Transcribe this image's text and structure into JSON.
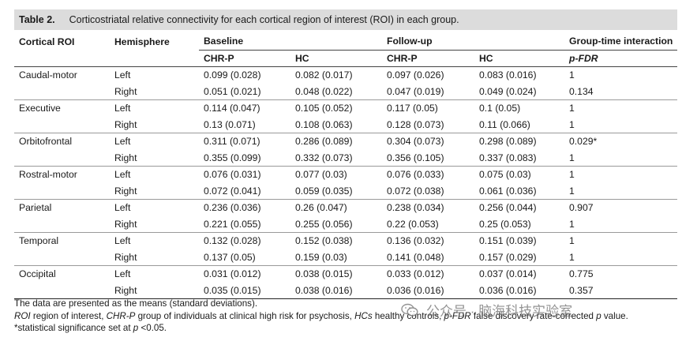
{
  "caption": {
    "label": "Table 2.",
    "text": "Corticostriatal relative connectivity for each cortical region of interest (ROI) in each group."
  },
  "header": {
    "col1": "Cortical ROI",
    "col2": "Hemisphere",
    "baseline": "Baseline",
    "followup": "Follow-up",
    "interaction": "Group-time interaction",
    "chrp": "CHR-P",
    "hc": "HC",
    "pfdr": "p-FDR"
  },
  "rows": [
    {
      "roi": "Caudal-motor",
      "hemi": "Left",
      "b_chrp": "0.099 (0.028)",
      "b_hc": "0.082 (0.017)",
      "f_chrp": "0.097 (0.026)",
      "f_hc": "0.083 (0.016)",
      "p": "1"
    },
    {
      "roi": "",
      "hemi": "Right",
      "b_chrp": "0.051 (0.021)",
      "b_hc": "0.048 (0.022)",
      "f_chrp": "0.047 (0.019)",
      "f_hc": "0.049 (0.024)",
      "p": "0.134"
    },
    {
      "roi": "Executive",
      "hemi": "Left",
      "b_chrp": "0.114 (0.047)",
      "b_hc": "0.105 (0.052)",
      "f_chrp": "0.117 (0.05)",
      "f_hc": "0.1 (0.05)",
      "p": "1"
    },
    {
      "roi": "",
      "hemi": "Right",
      "b_chrp": "0.13 (0.071)",
      "b_hc": "0.108 (0.063)",
      "f_chrp": "0.128 (0.073)",
      "f_hc": "0.11 (0.066)",
      "p": "1"
    },
    {
      "roi": "Orbitofrontal",
      "hemi": "Left",
      "b_chrp": "0.311 (0.071)",
      "b_hc": "0.286 (0.089)",
      "f_chrp": "0.304 (0.073)",
      "f_hc": "0.298 (0.089)",
      "p": "0.029*"
    },
    {
      "roi": "",
      "hemi": "Right",
      "b_chrp": "0.355 (0.099)",
      "b_hc": "0.332 (0.073)",
      "f_chrp": "0.356 (0.105)",
      "f_hc": "0.337 (0.083)",
      "p": "1"
    },
    {
      "roi": "Rostral-motor",
      "hemi": "Left",
      "b_chrp": "0.076 (0.031)",
      "b_hc": "0.077 (0.03)",
      "f_chrp": "0.076 (0.033)",
      "f_hc": "0.075 (0.03)",
      "p": "1"
    },
    {
      "roi": "",
      "hemi": "Right",
      "b_chrp": "0.072 (0.041)",
      "b_hc": "0.059 (0.035)",
      "f_chrp": "0.072 (0.038)",
      "f_hc": "0.061 (0.036)",
      "p": "1"
    },
    {
      "roi": "Parietal",
      "hemi": "Left",
      "b_chrp": "0.236 (0.036)",
      "b_hc": "0.26 (0.047)",
      "f_chrp": "0.238 (0.034)",
      "f_hc": "0.256 (0.044)",
      "p": "0.907"
    },
    {
      "roi": "",
      "hemi": "Right",
      "b_chrp": "0.221 (0.055)",
      "b_hc": "0.255 (0.056)",
      "f_chrp": "0.22 (0.053)",
      "f_hc": "0.25 (0.053)",
      "p": "1"
    },
    {
      "roi": "Temporal",
      "hemi": "Left",
      "b_chrp": "0.132 (0.028)",
      "b_hc": "0.152 (0.038)",
      "f_chrp": "0.136 (0.032)",
      "f_hc": "0.151 (0.039)",
      "p": "1"
    },
    {
      "roi": "",
      "hemi": "Right",
      "b_chrp": "0.137 (0.05)",
      "b_hc": "0.159 (0.03)",
      "f_chrp": "0.141 (0.048)",
      "f_hc": "0.157 (0.029)",
      "p": "1"
    },
    {
      "roi": "Occipital",
      "hemi": "Left",
      "b_chrp": "0.031 (0.012)",
      "b_hc": "0.038 (0.015)",
      "f_chrp": "0.033 (0.012)",
      "f_hc": "0.037 (0.014)",
      "p": "0.775"
    },
    {
      "roi": "",
      "hemi": "Right",
      "b_chrp": "0.035 (0.015)",
      "b_hc": "0.038 (0.016)",
      "f_chrp": "0.036 (0.016)",
      "f_hc": "0.036 (0.016)",
      "p": "0.357"
    }
  ],
  "notes": {
    "line1": "The data are presented as the means (standard deviations).",
    "line2_a": "ROI",
    "line2_b": " region of interest, ",
    "line2_c": "CHR-P",
    "line2_d": " group of individuals at clinical high risk for psychosis, ",
    "line2_e": "HCs",
    "line2_f": " healthy controls, ",
    "line2_g": "p-FDR",
    "line2_h": " false discovery rate-corrected ",
    "line2_i": "p",
    "line2_j": " value.",
    "line3_a": "*statistical significance set at ",
    "line3_b": "p",
    "line3_c": " <0.05."
  },
  "watermark": {
    "text": "公众号 · 脑海科技实验室",
    "icon": "wechat-icon"
  }
}
